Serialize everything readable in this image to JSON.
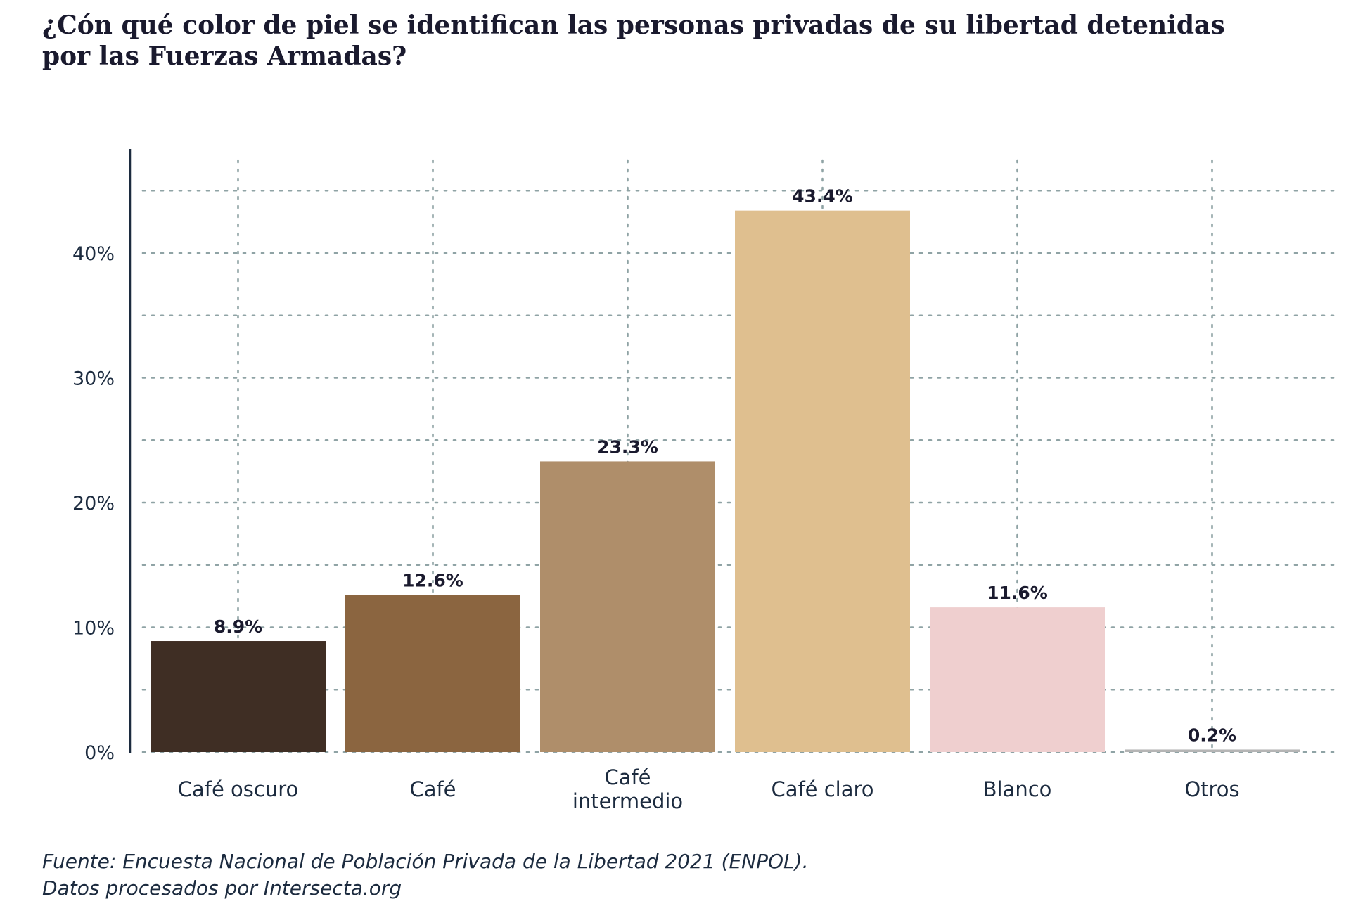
{
  "title": {
    "line1": "¿Cón qué color de piel se identifican las personas privadas de su libertad detenidas",
    "line2": "por las Fuerzas Armadas?"
  },
  "caption": {
    "line1": "Fuente: Encuesta Nacional de Población Privada de la Libertad 2021 (ENPOL).",
    "line2": "Datos procesados por Intersecta.org"
  },
  "chart_data": {
    "type": "bar",
    "categories": [
      "Café oscuro",
      "Café",
      "Café intermedio",
      "Café claro",
      "Blanco",
      "Otros"
    ],
    "category_lines": [
      [
        "Café oscuro"
      ],
      [
        "Café"
      ],
      [
        "Café",
        "intermedio"
      ],
      [
        "Café claro"
      ],
      [
        "Blanco"
      ],
      [
        "Otros"
      ]
    ],
    "values": [
      8.9,
      12.6,
      23.3,
      43.4,
      11.6,
      0.2
    ],
    "value_labels": [
      "8.9%",
      "12.6%",
      "23.3%",
      "43.4%",
      "11.6%",
      "0.2%"
    ],
    "colors": [
      "#3f2e24",
      "#8b6540",
      "#af8e6a",
      "#dfbf8f",
      "#efcfcf",
      "#b5b5b5"
    ],
    "ylim": [
      0,
      48
    ],
    "yticks": [
      0,
      10,
      20,
      30,
      40
    ],
    "ytick_labels": [
      "0%",
      "10%",
      "20%",
      "30%",
      "40%"
    ],
    "grid": true,
    "grid_color": "#8fa3a5",
    "axis_color": "#1c2b3f",
    "xlabel": "",
    "ylabel": ""
  }
}
